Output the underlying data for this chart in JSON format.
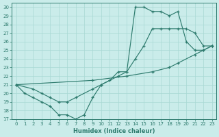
{
  "xlabel": "Humidex (Indice chaleur)",
  "xlim": [
    -0.5,
    23.5
  ],
  "ylim": [
    17,
    30.5
  ],
  "yticks": [
    17,
    18,
    19,
    20,
    21,
    22,
    23,
    24,
    25,
    26,
    27,
    28,
    29,
    30
  ],
  "xticks": [
    0,
    1,
    2,
    3,
    4,
    5,
    6,
    7,
    8,
    9,
    10,
    11,
    12,
    13,
    14,
    15,
    16,
    17,
    18,
    19,
    20,
    21,
    22,
    23
  ],
  "bg_color": "#caecea",
  "line_color": "#2e7b6e",
  "grid_color": "#a8d8d4",
  "line1_x": [
    0,
    1,
    2,
    3,
    4,
    5,
    6,
    7,
    8,
    9,
    10,
    11,
    12,
    13,
    14,
    15,
    16,
    17,
    18,
    19,
    20,
    21,
    22,
    23
  ],
  "line1_y": [
    21,
    20,
    19.5,
    19,
    18.5,
    17.5,
    17.5,
    17,
    17.5,
    19.5,
    21,
    21.5,
    22.5,
    22.5,
    30,
    30,
    29.5,
    29.5,
    29,
    29.5,
    26,
    25,
    25,
    25.5
  ],
  "line2_x": [
    0,
    2,
    3,
    4,
    5,
    6,
    7,
    9,
    10,
    12,
    13,
    14,
    15,
    16,
    17,
    18,
    19,
    20,
    21,
    22,
    23
  ],
  "line2_y": [
    21,
    20.5,
    20,
    19.5,
    19,
    19,
    19.5,
    20.5,
    21,
    22,
    22.5,
    24,
    25.5,
    27.5,
    27.5,
    27.5,
    27.5,
    27.5,
    27,
    25.5,
    25.5
  ],
  "line3_x": [
    0,
    9,
    13,
    16,
    18,
    19,
    21,
    22,
    23
  ],
  "line3_y": [
    21,
    21.5,
    22,
    22.5,
    23,
    23.5,
    24.5,
    25,
    25.5
  ]
}
